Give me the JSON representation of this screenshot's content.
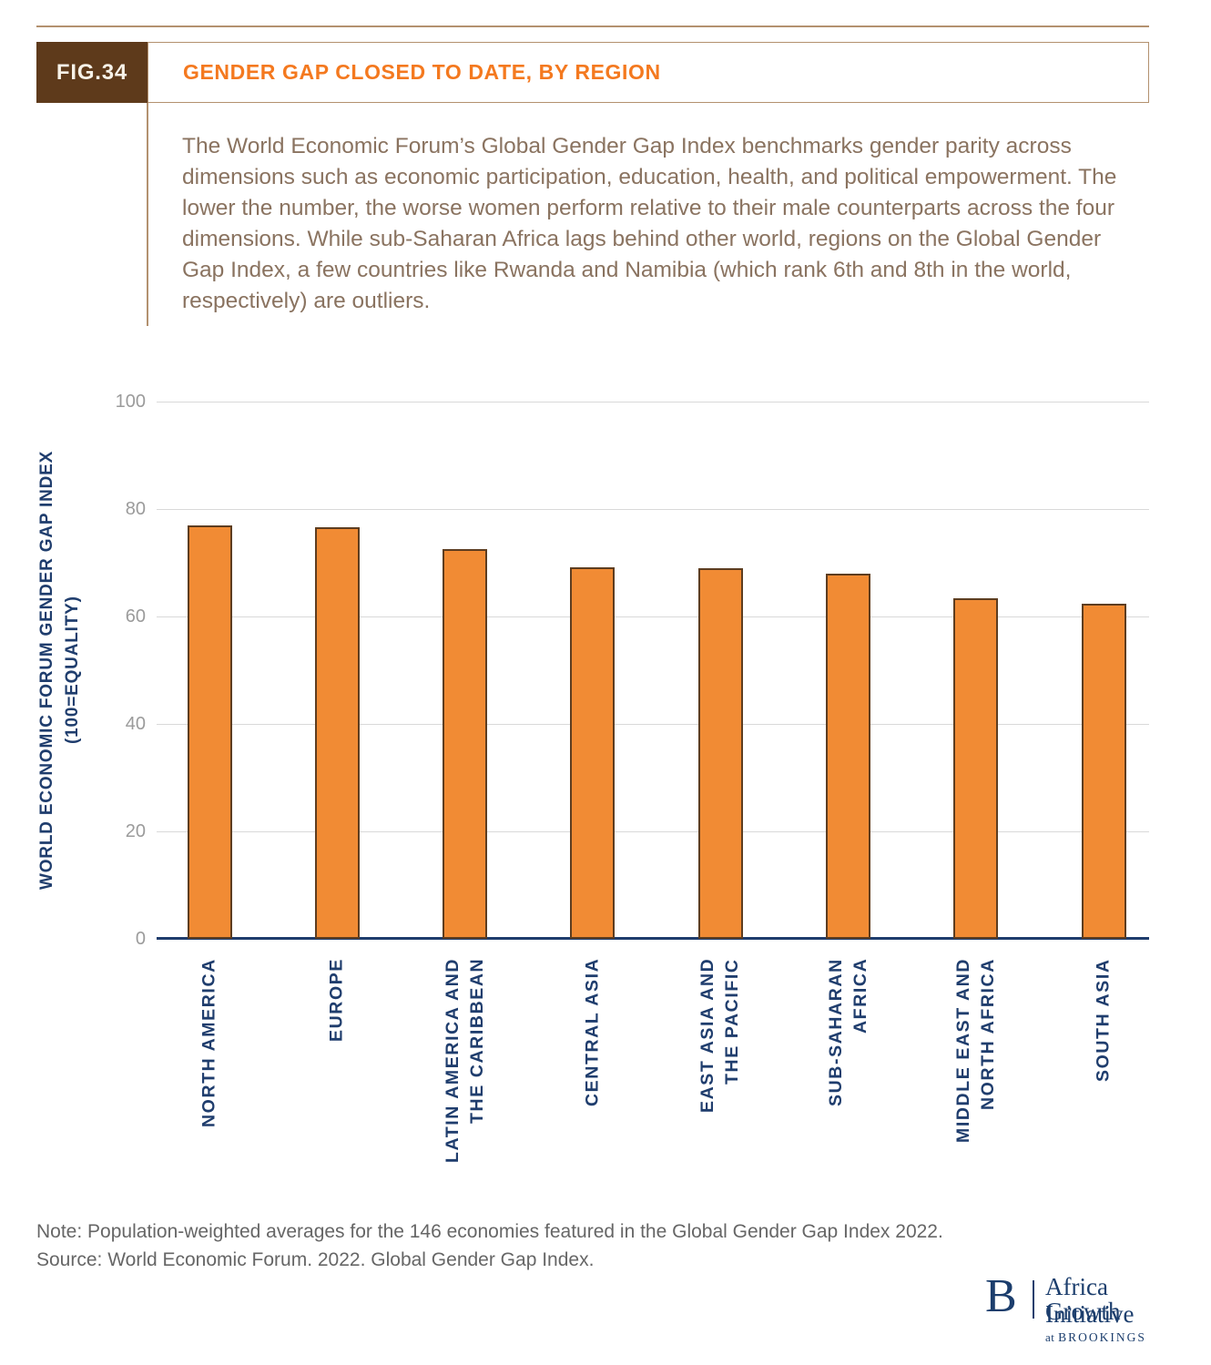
{
  "figure": {
    "tag": "FIG.34",
    "title": "GENDER GAP CLOSED TO DATE, BY REGION",
    "description": "The World Economic Forum’s Global Gender Gap Index benchmarks gender parity across dimensions such as economic participation, education, health, and political empowerment. The lower the number, the worse women perform relative to their male counterparts across the four dimensions. While sub-Saharan Africa lags behind other world, regions on the Global Gender Gap Index, a few countries like Rwanda and Namibia (which rank 6th and 8th in the world, respectively) are outliers."
  },
  "chart_data": {
    "type": "bar",
    "title": "GENDER GAP CLOSED TO DATE, BY REGION",
    "categories": [
      "NORTH AMERICA",
      "EUROPE",
      "LATIN AMERICA AND\nTHE CARIBBEAN",
      "CENTRAL ASIA",
      "EAST ASIA AND\nTHE PACIFIC",
      "SUB-SAHARAN\nAFRICA",
      "MIDDLE EAST AND\nNORTH AFRICA",
      "SOUTH ASIA"
    ],
    "values": [
      76.9,
      76.6,
      72.6,
      69.1,
      69.0,
      67.9,
      63.4,
      62.4
    ],
    "xlabel": "",
    "ylabel": "WORLD ECONOMIC FORUM GENDER GAP INDEX\n(100=EQUALITY)",
    "yticks": [
      0,
      20,
      40,
      60,
      80,
      100
    ],
    "ylim": [
      0,
      100
    ],
    "grid": true,
    "legend": "none",
    "bar_color": "#F18B34",
    "bar_border_color": "#5D3D20",
    "axis_color": "#1F3D6D",
    "tick_label_color": "#9B9B9B"
  },
  "footer": {
    "note": "Note: Population-weighted averages for the 146 economies featured in the Global Gender Gap Index 2022.",
    "source": "Source: World Economic Forum. 2022. Global Gender Gap Index.",
    "logo": {
      "b": "B",
      "line1": "Africa Growth",
      "line2": "Initiative",
      "at": "at ",
      "brand": "BROOKINGS"
    }
  }
}
